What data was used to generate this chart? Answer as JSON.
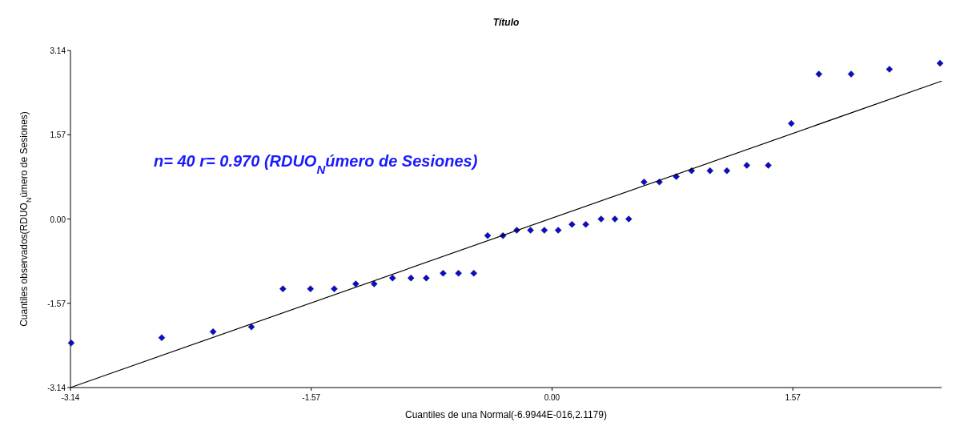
{
  "chart_data": {
    "type": "scatter",
    "title": "Título",
    "xlabel": "Cuantiles de una Normal(-6.9944E-016,2.1179)",
    "ylabel": "Cuantiles observados(RDUO$_{N}$úmero de Sesiones)",
    "annotations": [
      "n= 40 r= 0.970 (RDUO$_{N}$úmero de Sesiones)"
    ],
    "xlim": [
      -3.14,
      2.54
    ],
    "ylim": [
      -3.14,
      3.14
    ],
    "xticks": [
      {
        "value": -3.14,
        "label": "-3.14"
      },
      {
        "value": -1.57,
        "label": "-1.57"
      },
      {
        "value": 0,
        "label": "0.00"
      },
      {
        "value": 1.57,
        "label": "1.57"
      }
    ],
    "yticks": [
      {
        "value": -3.14,
        "label": "-3.14"
      },
      {
        "value": -1.57,
        "label": "-1.57"
      },
      {
        "value": 0,
        "label": "0.00"
      },
      {
        "value": 1.57,
        "label": "1.57"
      },
      {
        "value": 3.14,
        "label": "3.14"
      }
    ],
    "grid": false,
    "series": [
      {
        "marker": "diamond",
        "color": "#0a0ad2",
        "x": [
          -3.135,
          -2.545,
          -2.21,
          -1.96,
          -1.755,
          -1.575,
          -1.42,
          -1.28,
          -1.16,
          -1.04,
          -0.92,
          -0.82,
          -0.71,
          -0.61,
          -0.51,
          -0.42,
          -0.32,
          -0.23,
          -0.14,
          -0.05,
          0.04,
          0.13,
          0.22,
          0.32,
          0.41,
          0.5,
          0.6,
          0.7,
          0.81,
          0.91,
          1.03,
          1.14,
          1.27,
          1.41,
          1.56,
          1.74,
          1.95,
          2.2,
          2.53
        ],
        "values": [
          -2.31,
          -2.21,
          -2.1,
          -2.01,
          -1.3,
          -1.3,
          -1.3,
          -1.21,
          -1.21,
          -1.1,
          -1.1,
          -1.1,
          -1.01,
          -1.01,
          -1.01,
          -0.31,
          -0.31,
          -0.21,
          -0.21,
          -0.21,
          -0.21,
          -0.1,
          -0.1,
          0,
          0,
          0,
          0.69,
          0.69,
          0.79,
          0.9,
          0.9,
          0.9,
          1.0,
          1.0,
          1.78,
          2.7,
          2.7,
          2.79,
          2.9
        ]
      },
      {
        "type": "line",
        "marker": "none",
        "color": "#000000",
        "x": [
          -3.14,
          2.54
        ],
        "values": [
          -3.14,
          2.57
        ]
      }
    ]
  }
}
